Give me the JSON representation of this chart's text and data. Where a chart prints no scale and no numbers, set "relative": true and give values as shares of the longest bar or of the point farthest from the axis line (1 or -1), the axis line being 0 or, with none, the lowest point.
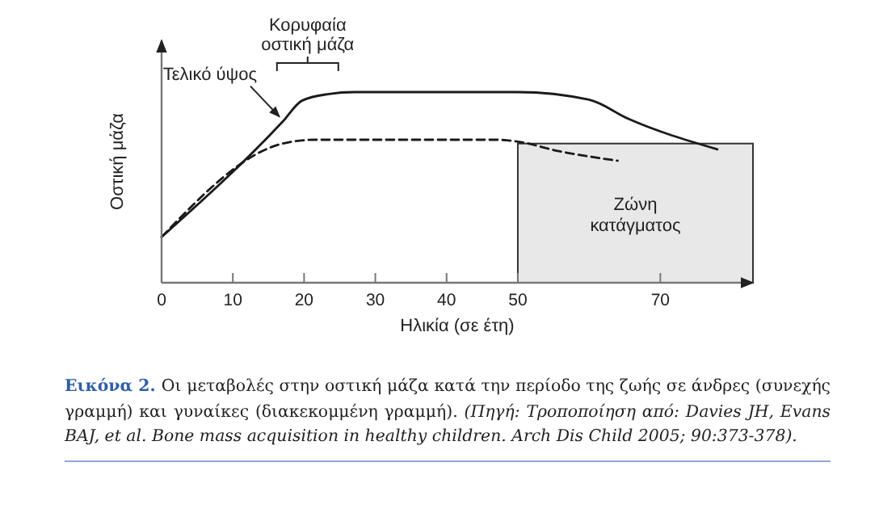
{
  "chart_data": {
    "type": "line",
    "relative": true,
    "ylabel": "Οστική μάζα",
    "xlabel": "Ηλικία (σε έτη)",
    "xlim": [
      0,
      83
    ],
    "xticks": [
      0,
      10,
      20,
      30,
      40,
      50,
      70
    ],
    "marker": "none",
    "series": [
      {
        "color": "#1a1a1a",
        "line_style": "solid",
        "x": [
          0,
          17,
          19.7,
          23.5,
          27,
          50,
          60,
          65.5,
          78
        ],
        "values": [
          0.24,
          0.845,
          0.955,
          0.99,
          1,
          1,
          0.96,
          0.86,
          0.7
        ]
      },
      {
        "color": "#1a1a1a",
        "line_style": "dashed",
        "x": [
          0,
          17,
          21.5,
          47,
          50,
          55.8,
          64
        ],
        "values": [
          0.24,
          0.73,
          0.75,
          0.75,
          0.74,
          0.69,
          0.64
        ]
      }
    ],
    "bands": [
      {
        "axis": "x",
        "from": 50,
        "to": 83,
        "label": "Ζώνη κατάγματος",
        "color": "#e8e8e8"
      }
    ],
    "annotations": [
      {
        "text": "Τελικό ύψος",
        "x": 17,
        "y": 0.845
      },
      {
        "text": "Κορυφαία οστική μάζα",
        "x": 20.5,
        "y": 1
      },
      "Εικόνα 2.",
      "Οι μεταβολές στην οστική μάζα κατά την περίοδο της ζωής σε άνδρες (συνεχής γραμμή) και γυναίκες (διακεκομμένη γραμμή).",
      "(Πηγή: Τροποποίηση από: Davies JH, Evans BAJ, et al. Bone mass acquisition in healthy children. Arch Dis Child 2005; 90:373-378)."
    ]
  }
}
